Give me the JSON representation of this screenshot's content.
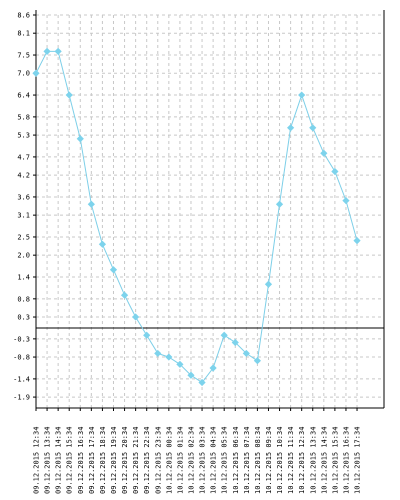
{
  "chart_data": {
    "type": "line",
    "title": "",
    "xlabel": "",
    "ylabel": "",
    "grid": true,
    "ylim": [
      -2.2,
      8.6
    ],
    "y_ticks": [
      "8.6",
      "8.1",
      "7.5",
      "7.0",
      "6.4",
      "5.8",
      "5.3",
      "4.7",
      "4.2",
      "3.6",
      "3.1",
      "2.5",
      "2.0",
      "1.4",
      "0.8",
      "0.3",
      "-0.3",
      "-0.8",
      "-1.4",
      "-1.9"
    ],
    "categories": [
      "09.12.2015 12:34",
      "09.12.2015 13:34",
      "09.12.2015 14:34",
      "09.12.2015 15:34",
      "09.12.2015 16:34",
      "09.12.2015 17:34",
      "09.12.2015 18:34",
      "09.12.2015 19:34",
      "09.12.2015 20:34",
      "09.12.2015 21:34",
      "09.12.2015 22:34",
      "09.12.2015 23:34",
      "10.12.2015 00:34",
      "10.12.2015 01:34",
      "10.12.2015 02:34",
      "10.12.2015 03:34",
      "10.12.2015 04:34",
      "10.12.2015 05:34",
      "10.12.2015 06:34",
      "10.12.2015 07:34",
      "10.12.2015 08:34",
      "10.12.2015 09:34",
      "10.12.2015 10:34",
      "10.12.2015 11:34",
      "10.12.2015 12:34",
      "10.12.2015 13:34",
      "10.12.2015 14:34",
      "10.12.2015 15:34",
      "10.12.2015 16:34",
      "10.12.2015 17:34"
    ],
    "values": [
      7.0,
      7.6,
      7.6,
      6.4,
      5.2,
      3.4,
      2.3,
      1.6,
      0.9,
      0.3,
      -0.2,
      -0.7,
      -0.8,
      -1.0,
      -1.3,
      -1.5,
      -1.1,
      -0.2,
      -0.4,
      -0.7,
      -0.9,
      1.2,
      3.4,
      5.5,
      6.4,
      5.5,
      4.8,
      4.3,
      3.5,
      2.4
    ],
    "colors": {
      "line": "#7dcfe8",
      "marker": "#7dd3ec",
      "grid": "#c8c8c8",
      "axis": "#000000",
      "zero_line": "#000000"
    }
  }
}
